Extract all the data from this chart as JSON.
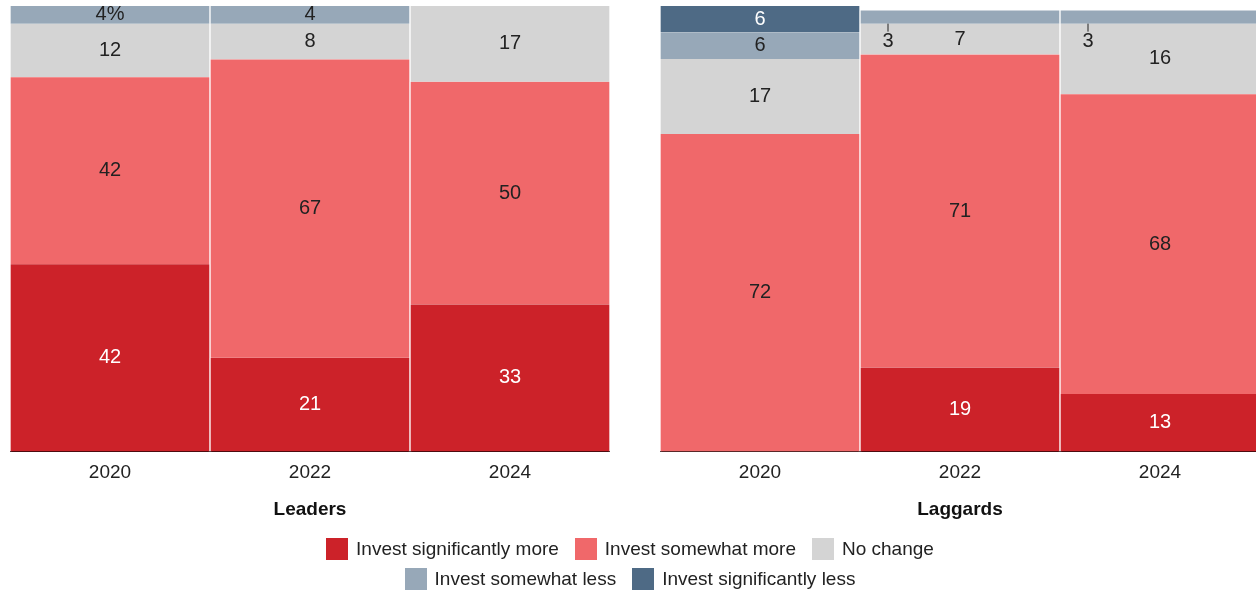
{
  "chart_data": [
    {
      "type": "bar",
      "stacked": true,
      "xlabel": "Leaders",
      "categories": [
        "2020",
        "2022",
        "2024"
      ],
      "ylim": [
        0,
        100
      ],
      "tick_labels": "x",
      "legend": "bottom",
      "series": [
        {
          "name": "Invest significantly more",
          "color": "#cc2229",
          "values": [
            42,
            21,
            33
          ],
          "value_labels": [
            "42",
            "21",
            "33"
          ]
        },
        {
          "name": "Invest somewhat more",
          "color": "#f0686a",
          "values": [
            42,
            67,
            50
          ],
          "value_labels": [
            "42",
            "67",
            "50"
          ]
        },
        {
          "name": "No change",
          "color": "#d4d4d4",
          "values": [
            12,
            8,
            17
          ],
          "value_labels": [
            "12",
            "8",
            "17"
          ]
        },
        {
          "name": "Invest somewhat less",
          "color": "#97a8b8",
          "values": [
            4,
            4,
            null
          ],
          "value_labels": [
            "4%",
            "4",
            null
          ]
        },
        {
          "name": "Invest significantly less",
          "color": "#4e6a85",
          "values": [
            null,
            null,
            null
          ],
          "value_labels": [
            null,
            null,
            null
          ]
        }
      ]
    },
    {
      "type": "bar",
      "stacked": true,
      "xlabel": "Laggards",
      "categories": [
        "2020",
        "2022",
        "2024"
      ],
      "ylim": [
        0,
        101
      ],
      "tick_labels": "x",
      "series": [
        {
          "color": "#cc2229",
          "values": [
            null,
            19,
            13
          ],
          "value_labels": [
            null,
            "19",
            "13"
          ]
        },
        {
          "color": "#f0686a",
          "values": [
            72,
            71,
            68
          ],
          "value_labels": [
            "72",
            "71",
            "68"
          ]
        },
        {
          "color": "#d4d4d4",
          "values": [
            17,
            7,
            16
          ],
          "value_labels": [
            "17",
            "7",
            "16"
          ]
        },
        {
          "color": "#97a8b8",
          "values": [
            6,
            3,
            3
          ],
          "value_labels": [
            "6",
            "3",
            "3"
          ]
        },
        {
          "color": "#4e6a85",
          "values": [
            6,
            null,
            null
          ],
          "value_labels": [
            "6",
            null,
            null
          ]
        }
      ]
    }
  ]
}
